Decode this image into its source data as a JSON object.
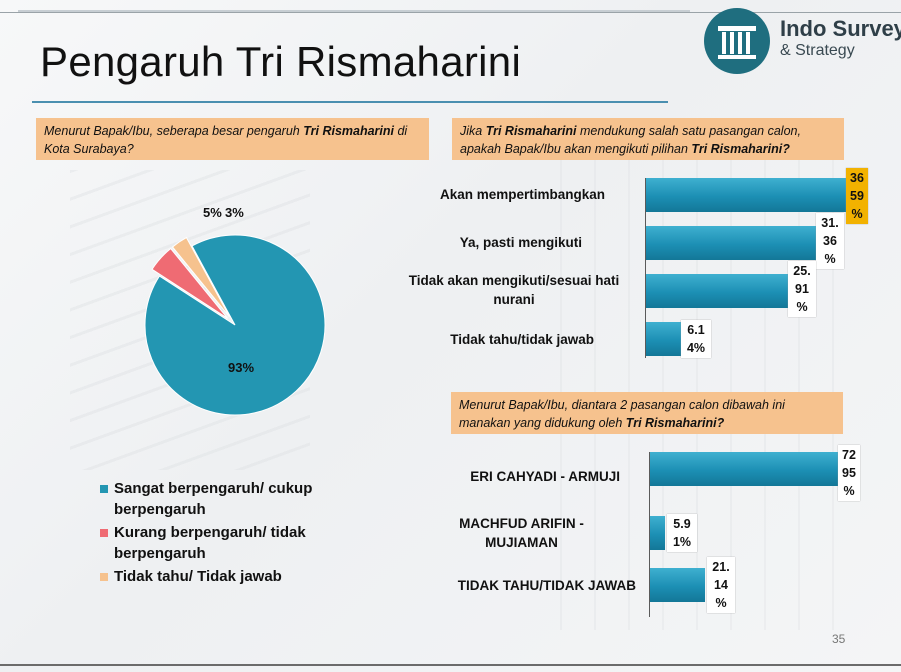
{
  "title": "Pengaruh Tri Rismaharini",
  "logo": {
    "name": "Indo Survey",
    "sub": "& Strategy"
  },
  "page_number": "35",
  "colors": {
    "pie_main": "#2396b2",
    "pie_second": "#ef6b73",
    "pie_third": "#f6c28e",
    "bar": "#1c8fb4",
    "highlight": "#f2b200",
    "question_box": "#f6c28e"
  },
  "q1": {
    "pre": "Menurut Bapak/Ibu, seberapa besar pengaruh ",
    "bold": "Tri Rismaharini",
    "post": " di Kota Surabaya?"
  },
  "q2": {
    "pre": "Jika ",
    "bold1": "Tri Rismaharini",
    "mid": " mendukung salah satu pasangan calon, apakah Bapak/Ibu akan mengikuti pilihan ",
    "bold2": "Tri Rismaharini?"
  },
  "q3": {
    "pre": "Menurut Bapak/Ibu, diantara 2 pasangan calon dibawah ini manakan yang didukung oleh ",
    "bold": "Tri Rismaharini?"
  },
  "chart_data": [
    {
      "type": "pie",
      "categories": [
        "Sangat berpengaruh/ cukup berpengaruh",
        "Kurang berpengaruh/ tidak berpengaruh",
        "Tidak tahu/ Tidak jawab"
      ],
      "values": [
        93,
        5,
        3
      ],
      "labels": [
        "93%",
        "5%",
        "3%"
      ],
      "legend_position": "bottom"
    },
    {
      "type": "bar",
      "orientation": "horizontal",
      "categories": [
        "Akan mempertimbangkan",
        "Ya, pasti mengikuti",
        "Tidak akan mengikuti/sesuai hati nurani",
        "Tidak tahu/tidak jawab"
      ],
      "values": [
        36.59,
        31.36,
        25.91,
        6.14
      ],
      "labels": [
        [
          "36",
          "59",
          "%"
        ],
        [
          "31.",
          "36",
          "%"
        ],
        [
          "25.",
          "91",
          "%"
        ],
        [
          "6.1",
          "4%"
        ]
      ]
    },
    {
      "type": "bar",
      "orientation": "horizontal",
      "categories": [
        "ERI CAHYADI - ARMUJI",
        "MACHFUD ARIFIN - MUJIAMAN",
        "TIDAK TAHU/TIDAK JAWAB"
      ],
      "values": [
        72.95,
        5.91,
        21.14
      ],
      "labels": [
        [
          "72",
          "95",
          "%"
        ],
        [
          "5.9",
          "1%"
        ],
        [
          "21.",
          "14",
          "%"
        ]
      ]
    }
  ]
}
